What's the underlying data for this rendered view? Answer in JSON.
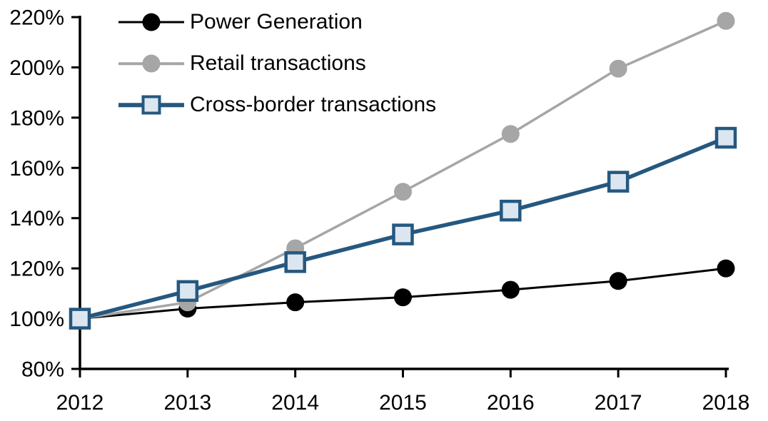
{
  "chart_data": {
    "type": "line",
    "title": "",
    "xlabel": "",
    "ylabel": "",
    "x": [
      2012,
      2013,
      2014,
      2015,
      2016,
      2017,
      2018
    ],
    "x_tick_labels": [
      "2012",
      "2013",
      "2014",
      "2015",
      "2016",
      "2017",
      "2018"
    ],
    "y_ticks": [
      80,
      100,
      120,
      140,
      160,
      180,
      200,
      220
    ],
    "y_tick_suffix": "%",
    "ylim": [
      80,
      220
    ],
    "xlim": [
      2012,
      2018
    ],
    "grid": false,
    "legend_position": "top-left-inside",
    "background_color": "#ffffff",
    "axis_color": "#000000",
    "series": [
      {
        "name": "Power Generation",
        "marker": "circle",
        "color": "#000000",
        "marker_fill": "#000000",
        "line_width": 3,
        "values": [
          100,
          104,
          106.5,
          108.5,
          111.5,
          115,
          120
        ]
      },
      {
        "name": "Retail transactions",
        "marker": "circle",
        "color": "#a6a6a6",
        "marker_fill": "#a6a6a6",
        "line_width": 3.5,
        "values": [
          100,
          106.5,
          128,
          150.5,
          173.5,
          199.5,
          218.5
        ]
      },
      {
        "name": "Cross-border transactions",
        "marker": "square",
        "color": "#255880",
        "marker_fill": "#dce6f1",
        "line_width": 5.5,
        "values": [
          100,
          111,
          122.5,
          133.5,
          143,
          154.5,
          172
        ]
      }
    ]
  }
}
